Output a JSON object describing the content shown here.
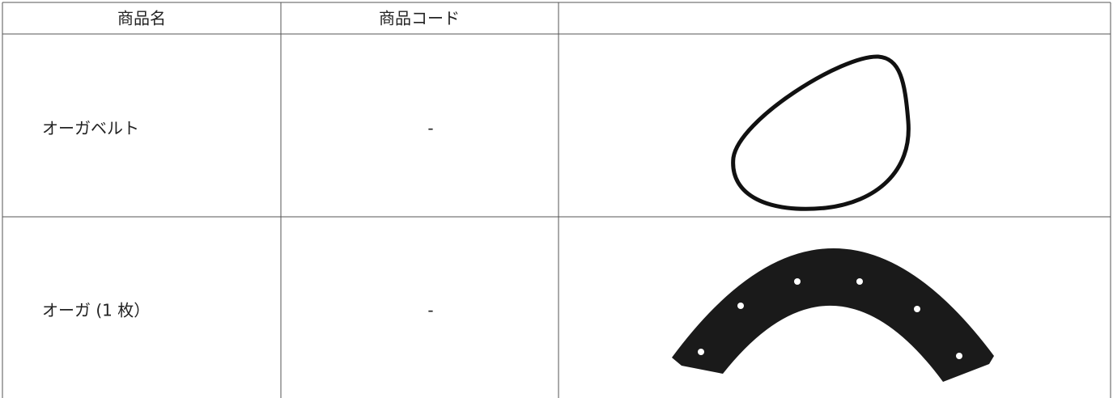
{
  "table": {
    "header": [
      "商品名",
      "商品コード"
    ],
    "rows": [
      [
        "オーガベルト",
        "-"
      ],
      [
        "オーガ (1 枚）",
        "-"
      ]
    ]
  }
}
